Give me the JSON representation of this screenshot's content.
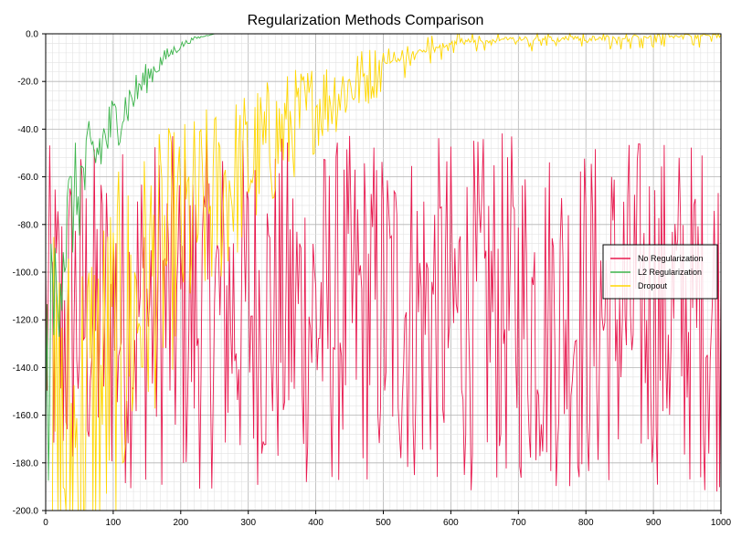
{
  "chart_data": {
    "type": "line",
    "title": "Regularization Methods Comparison",
    "xlabel": "",
    "ylabel": "",
    "xlim": [
      0,
      1000
    ],
    "ylim": [
      -200,
      0
    ],
    "x_ticks": [
      "0",
      "100",
      "200",
      "300",
      "400",
      "500",
      "600",
      "700",
      "800",
      "900",
      "1000"
    ],
    "y_ticks": [
      "0.0",
      "-20.0",
      "-40.0",
      "-60.0",
      "-80.0",
      "-100.0",
      "-120.0",
      "-140.0",
      "-160.0",
      "-180.0",
      "-200.0"
    ],
    "grid": true,
    "legend_position": "right",
    "series": [
      {
        "name": "No Regularization",
        "color": "#e8194f",
        "x": [
          0,
          25,
          50,
          75,
          100,
          150,
          200,
          300,
          400,
          500,
          600,
          700,
          800,
          900,
          1000
        ],
        "values": [
          -120,
          -125,
          -115,
          -120,
          -118,
          -115,
          -118,
          -115,
          -118,
          -115,
          -118,
          -115,
          -118,
          -115,
          -118
        ],
        "spread": [
          -200,
          -50
        ]
      },
      {
        "name": "L2 Regularization",
        "color": "#3cb44b",
        "x": [
          0,
          10,
          20,
          40,
          60,
          80,
          100,
          120,
          140,
          160,
          180,
          200,
          220,
          250,
          300,
          1000
        ],
        "values": [
          -160,
          -120,
          -95,
          -72,
          -58,
          -48,
          -38,
          -30,
          -22,
          -15,
          -9,
          -5,
          -2,
          0,
          0,
          0
        ]
      },
      {
        "name": "Dropout",
        "color": "#ffd700",
        "x": [
          0,
          50,
          100,
          150,
          200,
          250,
          300,
          350,
          400,
          450,
          500,
          550,
          600,
          700,
          800,
          900,
          1000
        ],
        "values": [
          -190,
          -170,
          -140,
          -105,
          -85,
          -70,
          -55,
          -42,
          -30,
          -22,
          -14,
          -9,
          -5,
          -3,
          -3,
          -2,
          -2
        ]
      }
    ]
  }
}
